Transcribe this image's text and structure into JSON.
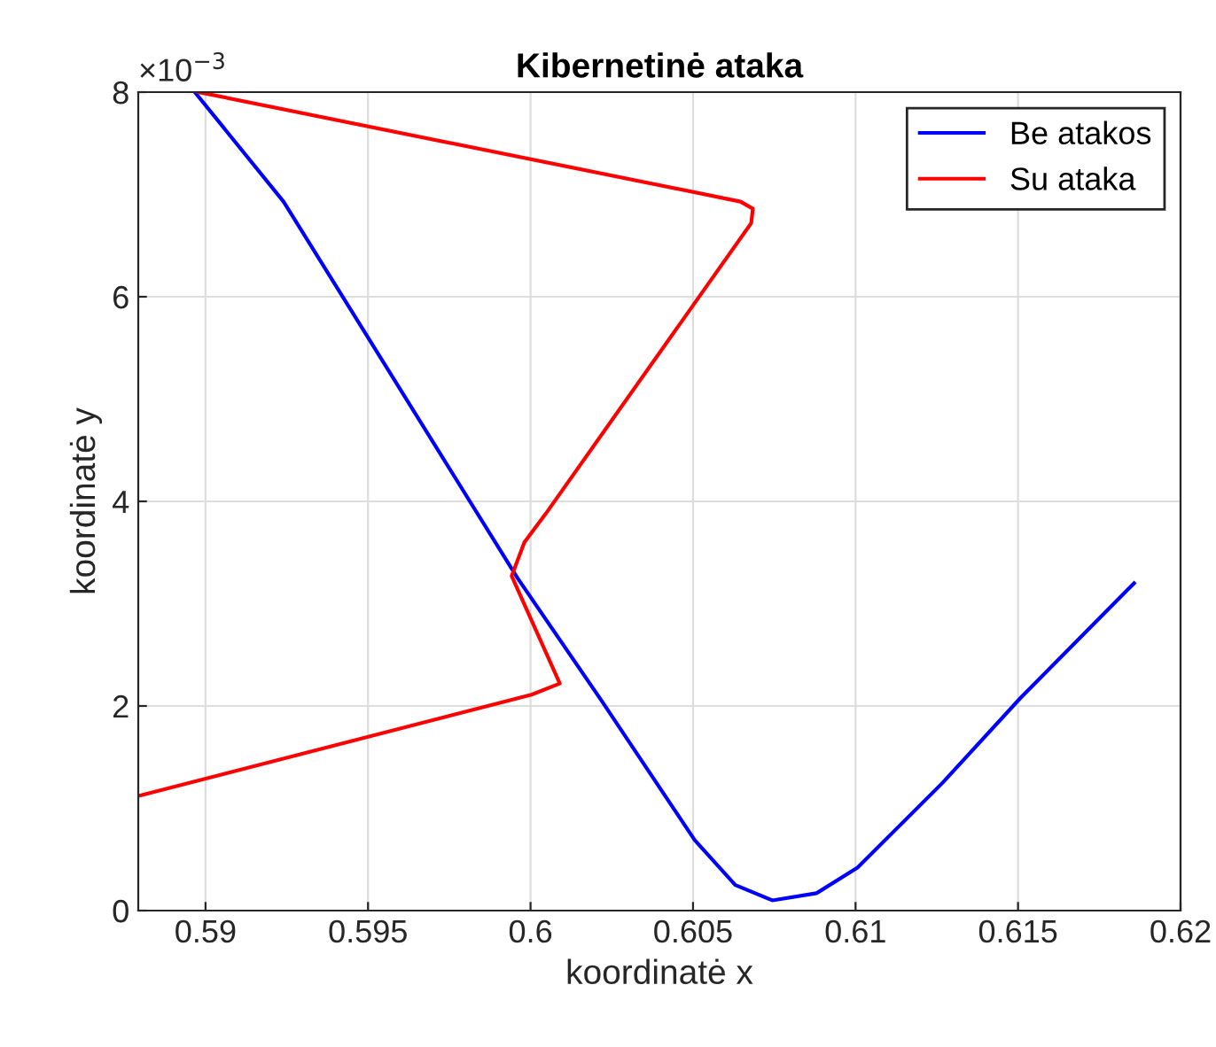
{
  "chart_data": {
    "type": "line",
    "title": "Kibernetinė ataka",
    "xlabel": "koordinatė x",
    "ylabel": "koordinatė y",
    "annotations": [
      "×10$^{−3}$"
    ],
    "series": [
      {
        "name": "Be atakos",
        "color": "#0000ff",
        "x": [
          0.58967,
          0.5924,
          0.5996,
          0.60221,
          0.60505,
          0.6063,
          0.60744,
          0.6088,
          0.61006,
          0.61268,
          0.61508,
          0.61857
        ],
        "values": [
          8.0,
          6.93,
          3.25,
          2.04,
          0.69,
          0.25,
          0.1,
          0.17,
          0.42,
          1.25,
          2.08,
          3.2
        ]
      },
      {
        "name": "Su ataka",
        "color": "#ff0000",
        "x": [
          0.58978,
          0.60646,
          0.60684,
          0.60679,
          0.60047,
          0.59981,
          0.59942,
          0.6009,
          0.60003,
          0.58793
        ],
        "values": [
          8.0,
          6.93,
          6.86,
          6.72,
          3.88,
          3.6,
          3.27,
          2.22,
          2.11,
          1.12
        ]
      }
    ],
    "xlim": [
      0.58793,
      0.62
    ],
    "xticks": [
      0.59,
      0.595,
      0.6,
      0.605,
      0.61,
      0.615,
      0.62
    ],
    "ylim": [
      0,
      8
    ],
    "yticks": [
      0,
      2,
      4,
      6,
      8
    ],
    "grid": true,
    "legend": "top right",
    "marker": "none",
    "line_style": "solid"
  }
}
